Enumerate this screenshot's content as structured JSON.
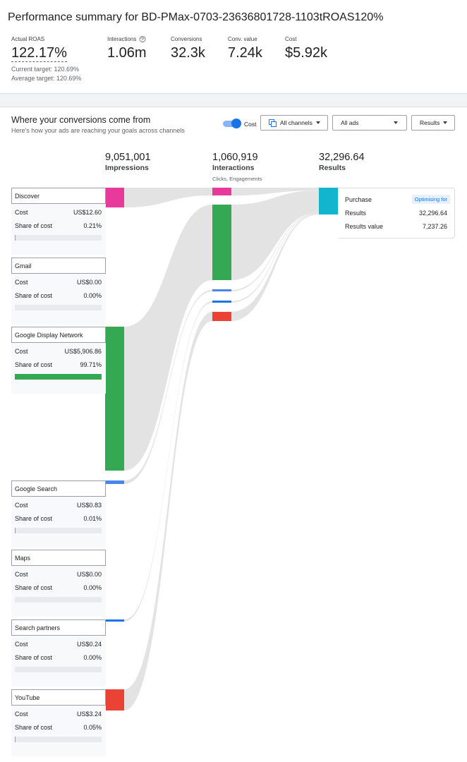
{
  "header": {
    "title": "Performance summary for BD-PMax-0703-23636801728-1103tROAS120%"
  },
  "metrics": [
    {
      "label": "Actual ROAS",
      "value": "122.17%",
      "notes": [
        "Current target: 120.69%",
        "Average target: 120.69%"
      ]
    },
    {
      "label": "Interactions",
      "value": "1.06m"
    },
    {
      "label": "Conversions",
      "value": "32.3k"
    },
    {
      "label": "Conv. value",
      "value": "7.24k"
    },
    {
      "label": "Cost",
      "value": "$5.92k"
    }
  ],
  "section": {
    "title": "Where your conversions come from",
    "subtitle": "Here's how your ads are reaching your goals across channels",
    "toggle": "Cost",
    "dropdowns": [
      "All channels",
      "All ads",
      "Results"
    ]
  },
  "columns": [
    {
      "value": "9,051,001",
      "label": "Impressions"
    },
    {
      "value": "1,060,919",
      "label": "Interactions",
      "sublabel": "Clicks, Engagements"
    },
    {
      "value": "32,296.64",
      "label": "Results"
    }
  ],
  "channel_labels": {
    "cost": "Cost",
    "share": "Share of cost"
  },
  "channels": [
    {
      "name": "Discover",
      "cost": "US$12.60",
      "share": "0.21%"
    },
    {
      "name": "Gmail",
      "cost": "US$0.00",
      "share": "0.00%"
    },
    {
      "name": "Google Display Network",
      "cost": "US$5,906.86",
      "share": "99.71%"
    },
    {
      "name": "Google Search",
      "cost": "US$0.83",
      "share": "0.01%"
    },
    {
      "name": "Maps",
      "cost": "US$0.00",
      "share": "0.00%"
    },
    {
      "name": "Search partners",
      "cost": "US$0.24",
      "share": "0.00%"
    },
    {
      "name": "YouTube",
      "cost": "US$3.24",
      "share": "0.05%"
    }
  ],
  "result_card": {
    "title": "Purchase",
    "badge": "Optimising for",
    "rows": [
      [
        "Results",
        "32,296.64"
      ],
      [
        "Results value",
        "7,237.26"
      ]
    ]
  }
}
